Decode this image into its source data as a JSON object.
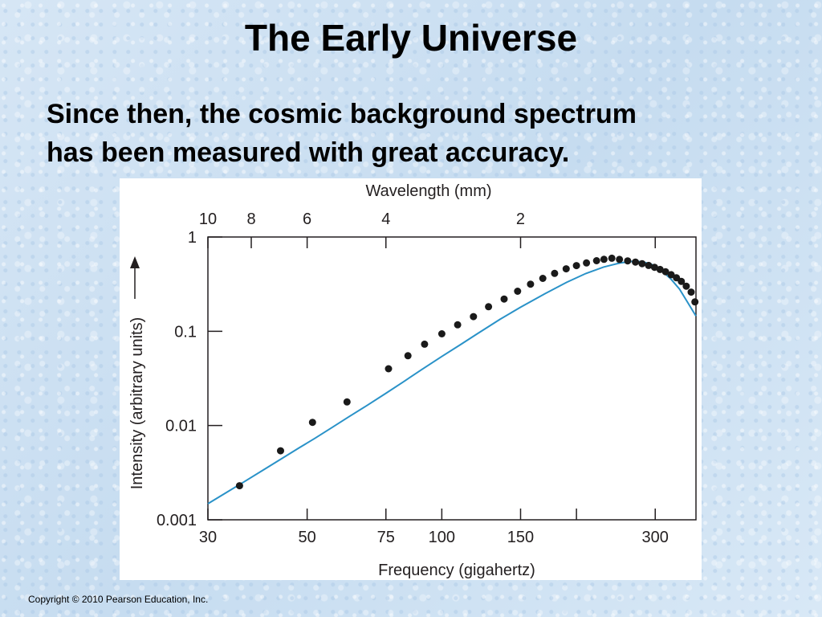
{
  "slide": {
    "title": "The Early Universe",
    "subtitle_lines": [
      "Since then, the cosmic background spectrum",
      "has been measured with great accuracy."
    ],
    "footer": "Copyright © 2010 Pearson Education, Inc."
  },
  "chart_data": {
    "type": "scatter",
    "title": "",
    "xlabel": "Frequency (gigahertz)",
    "ylabel": "Intensity (arbitrary units)",
    "x2label": "Wavelength (mm)",
    "x_scale": "log",
    "y_scale": "log",
    "xlim": [
      30,
      370
    ],
    "ylim": [
      0.001,
      1
    ],
    "grid": false,
    "x_ticks": [
      {
        "value": 30,
        "label": "30"
      },
      {
        "value": 50,
        "label": "50"
      },
      {
        "value": 75,
        "label": "75"
      },
      {
        "value": 100,
        "label": "100"
      },
      {
        "value": 150,
        "label": "150"
      },
      {
        "value": 300,
        "label": "300"
      }
    ],
    "x_ticks_unlabeled": [
      200
    ],
    "top_ticks": [
      {
        "value": 30,
        "label": "10"
      },
      {
        "value": 37.5,
        "label": "8"
      },
      {
        "value": 50,
        "label": "6"
      },
      {
        "value": 75,
        "label": "4"
      },
      {
        "value": 150,
        "label": "2"
      }
    ],
    "top_ticks_unlabeled": [
      300
    ],
    "y_ticks": [
      {
        "value": 0.001,
        "label": "0.001"
      },
      {
        "value": 0.01,
        "label": "0.01"
      },
      {
        "value": 0.1,
        "label": "0.1"
      },
      {
        "value": 1,
        "label": "1"
      }
    ],
    "curve": {
      "color": "#2a92c8",
      "x": [
        30,
        33,
        36,
        40,
        44,
        48,
        52,
        57,
        62,
        68,
        75,
        82,
        90,
        100,
        110,
        120,
        135,
        150,
        170,
        190,
        210,
        230,
        250,
        265,
        280,
        295,
        310,
        325,
        340,
        355,
        370
      ],
      "y": [
        0.00148,
        0.00195,
        0.0025,
        0.0034,
        0.0045,
        0.0058,
        0.0073,
        0.0096,
        0.0124,
        0.0163,
        0.022,
        0.029,
        0.039,
        0.054,
        0.072,
        0.094,
        0.134,
        0.18,
        0.25,
        0.33,
        0.41,
        0.48,
        0.53,
        0.55,
        0.55,
        0.51,
        0.44,
        0.36,
        0.28,
        0.2,
        0.145
      ]
    },
    "series": [
      {
        "color": "#1a1a1a",
        "x": [
          35.3,
          43.6,
          51.4,
          61.4,
          76.0,
          84.0,
          91.5,
          100,
          108.5,
          117.7,
          127.2,
          137.8,
          147.7,
          157.9,
          168.2,
          178.7,
          189.7,
          200,
          210.6,
          221.8,
          230.4,
          240,
          249.6,
          260.3,
          271,
          280.4,
          290,
          299,
          307.6,
          316.4,
          325.7,
          334.7,
          343.2,
          351.9,
          361,
          368
        ],
        "y": [
          0.0023,
          0.0054,
          0.0108,
          0.0178,
          0.04,
          0.055,
          0.073,
          0.094,
          0.117,
          0.143,
          0.182,
          0.22,
          0.266,
          0.316,
          0.364,
          0.411,
          0.46,
          0.497,
          0.531,
          0.56,
          0.579,
          0.596,
          0.578,
          0.558,
          0.542,
          0.521,
          0.499,
          0.477,
          0.453,
          0.428,
          0.398,
          0.369,
          0.338,
          0.301,
          0.26,
          0.205
        ]
      }
    ]
  }
}
